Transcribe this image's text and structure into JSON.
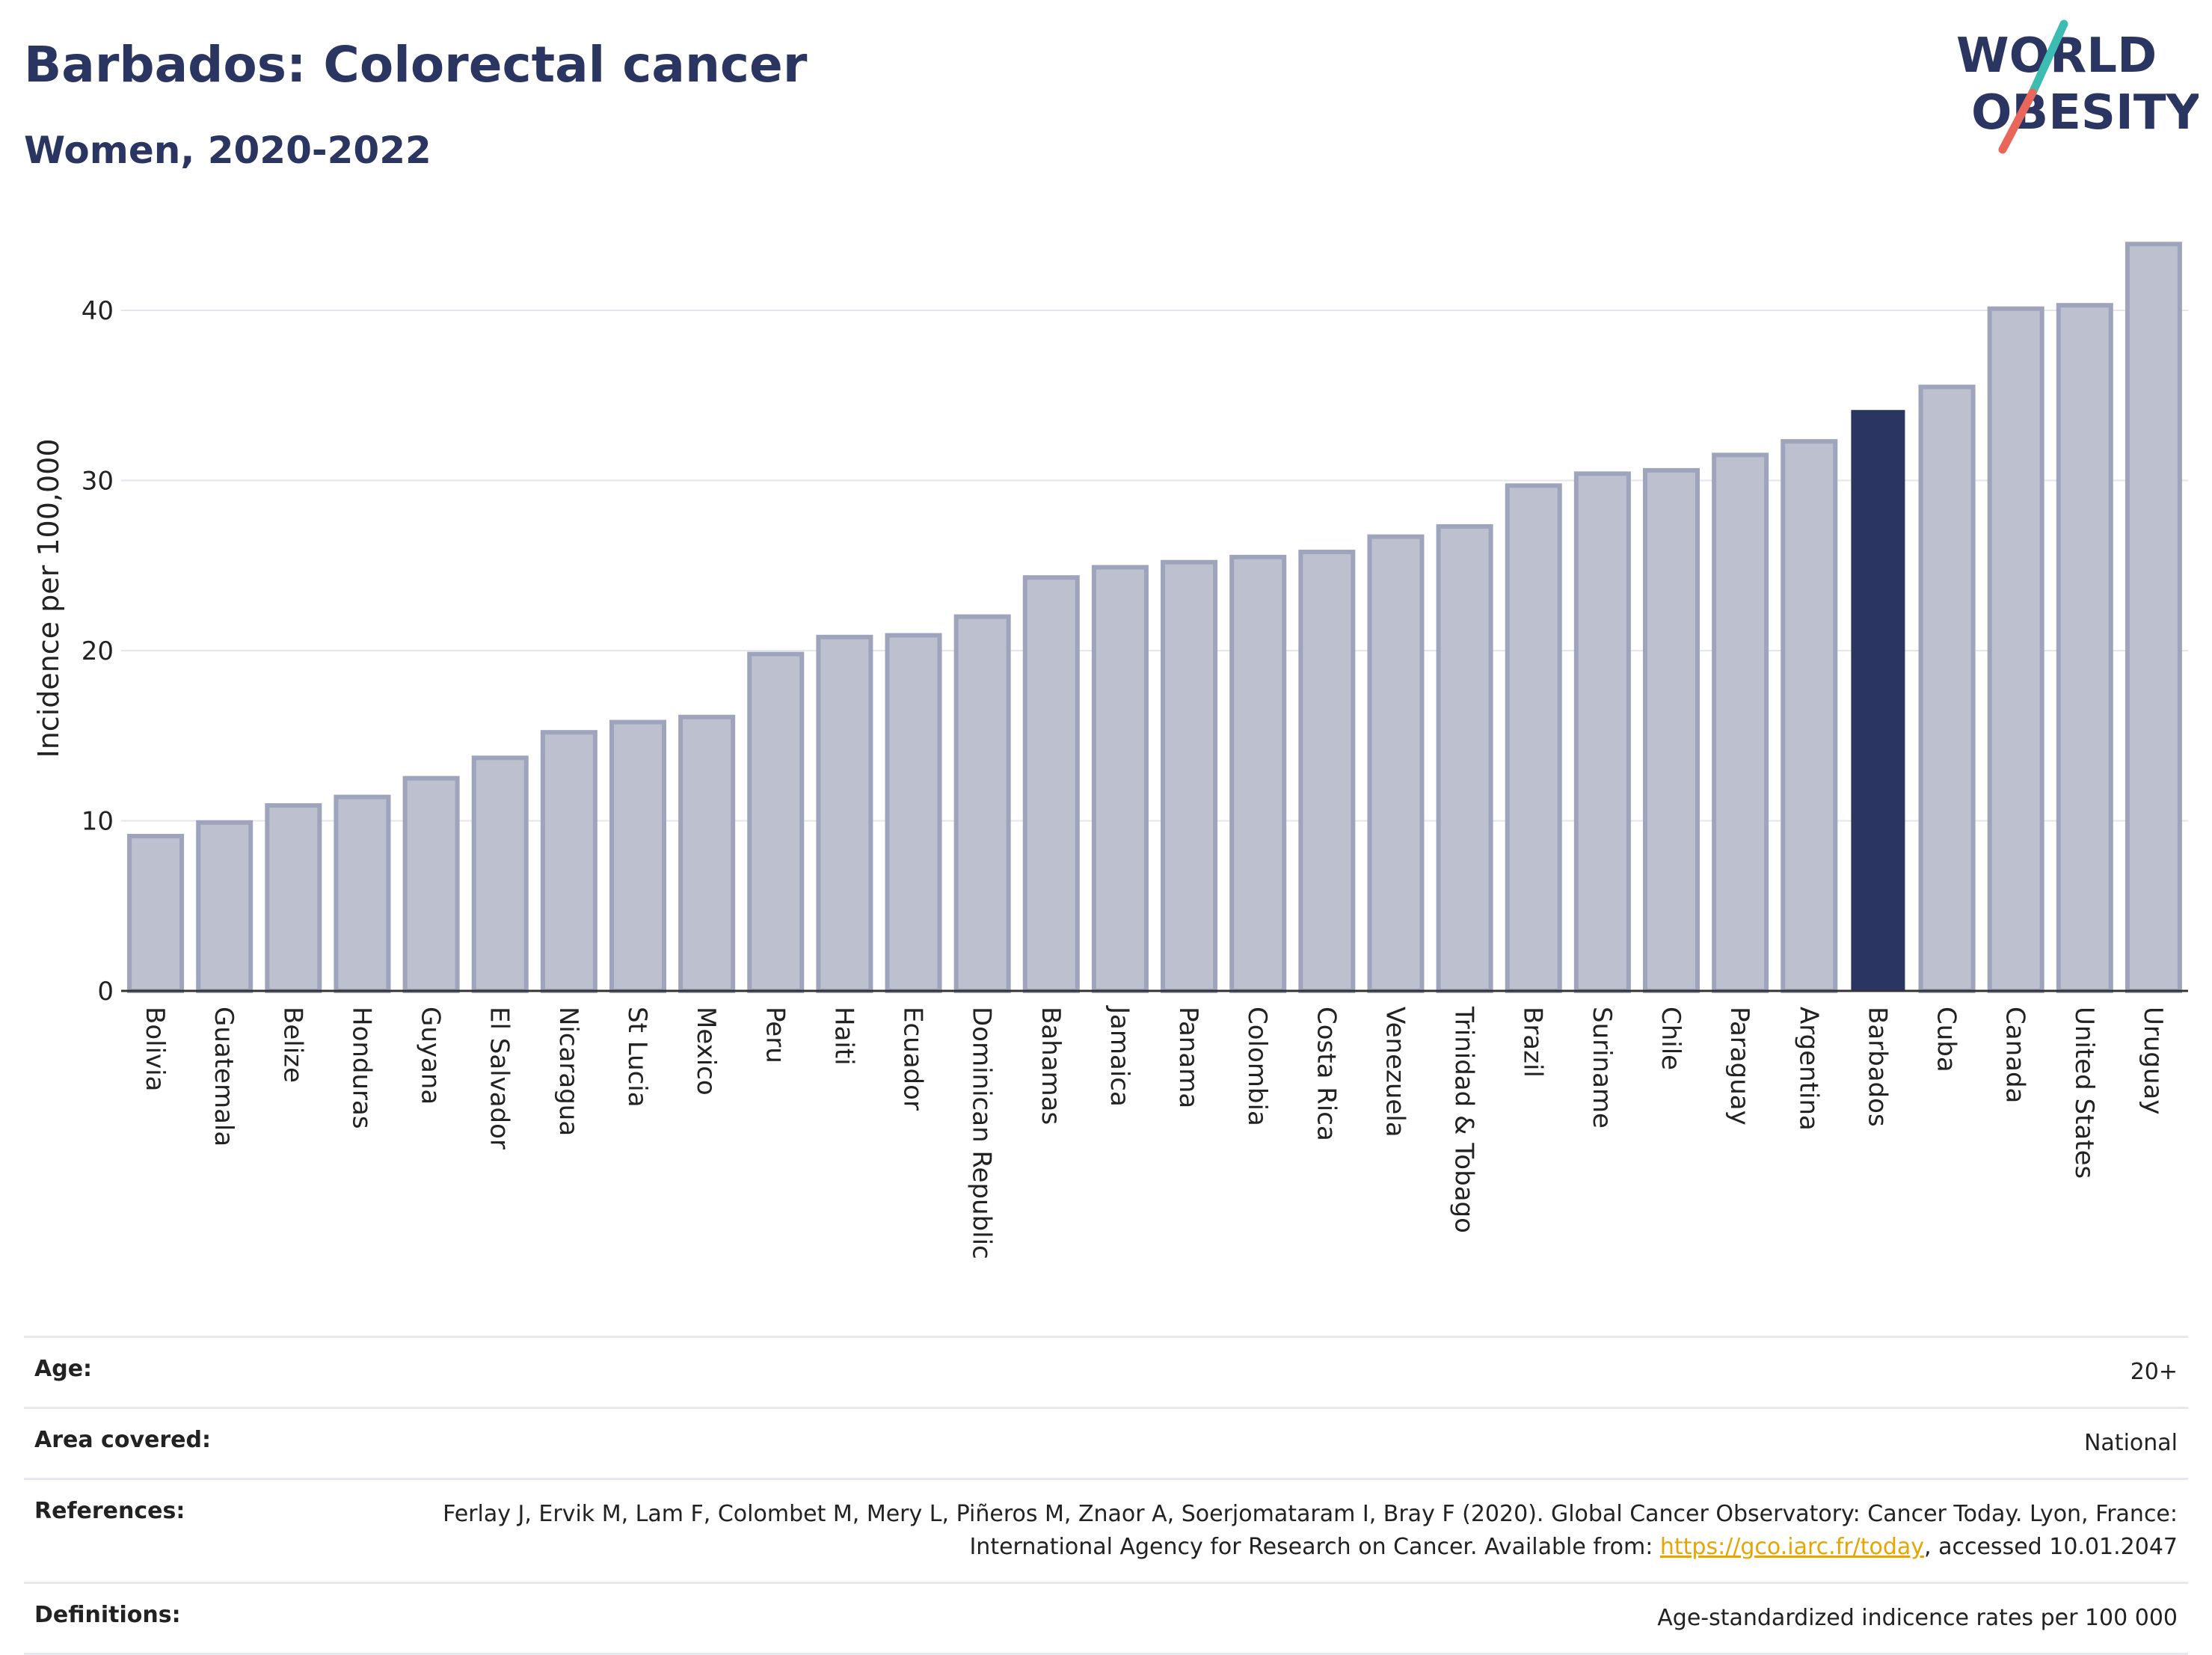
{
  "header": {
    "title": "Barbados: Colorectal cancer",
    "subtitle": "Women, 2020-2022"
  },
  "logo": {
    "line1": "WORLD",
    "line2": "OBESITY",
    "text_color": "#2a3561",
    "slash_colors": [
      "#3dbdb1",
      "#e8675a"
    ]
  },
  "chart_data": {
    "type": "bar",
    "title": "Barbados: Colorectal cancer",
    "subtitle": "Women, 2020-2022",
    "xlabel": "",
    "ylabel": "Incidence per 100,000",
    "ylim": [
      0,
      44
    ],
    "yticks": [
      0,
      10,
      20,
      30,
      40
    ],
    "grid": true,
    "highlight": "Barbados",
    "colors": {
      "bar": "#bcc0cf",
      "bar_edge": "#9ea4bb",
      "highlight": "#2a3561"
    },
    "categories": [
      "Bolivia",
      "Guatemala",
      "Belize",
      "Honduras",
      "Guyana",
      "El Salvador",
      "Nicaragua",
      "St Lucia",
      "Mexico",
      "Peru",
      "Haiti",
      "Ecuador",
      "Dominican Republic",
      "Bahamas",
      "Jamaica",
      "Panama",
      "Colombia",
      "Costa Rica",
      "Venezuela",
      "Trinidad & Tobago",
      "Brazil",
      "Suriname",
      "Chile",
      "Paraguay",
      "Argentina",
      "Barbados",
      "Cuba",
      "Canada",
      "United States",
      "Uruguay"
    ],
    "values": [
      9.1,
      9.9,
      10.9,
      11.4,
      12.5,
      13.7,
      15.2,
      15.8,
      16.1,
      19.8,
      20.8,
      20.9,
      22.0,
      24.3,
      24.9,
      25.2,
      25.5,
      25.8,
      26.7,
      27.3,
      29.7,
      30.4,
      30.6,
      31.5,
      32.3,
      34.1,
      35.5,
      40.1,
      40.3,
      43.9
    ]
  },
  "meta": {
    "rows": [
      {
        "label": "Age:",
        "value": "20+"
      },
      {
        "label": "Area covered:",
        "value": "National"
      },
      {
        "label": "References:",
        "value_before": "Ferlay J, Ervik M, Lam F, Colombet M, Mery L, Piñeros M, Znaor A, Soerjomataram I, Bray F (2020). Global Cancer Observatory: Cancer Today. Lyon, France: International Agency for Research on Cancer. Available from: ",
        "link": "https://gco.iarc.fr/today",
        "value_after": ", accessed 10.01.2047"
      },
      {
        "label": "Definitions:",
        "value": "Age-standardized indicence rates per 100 000"
      }
    ]
  }
}
